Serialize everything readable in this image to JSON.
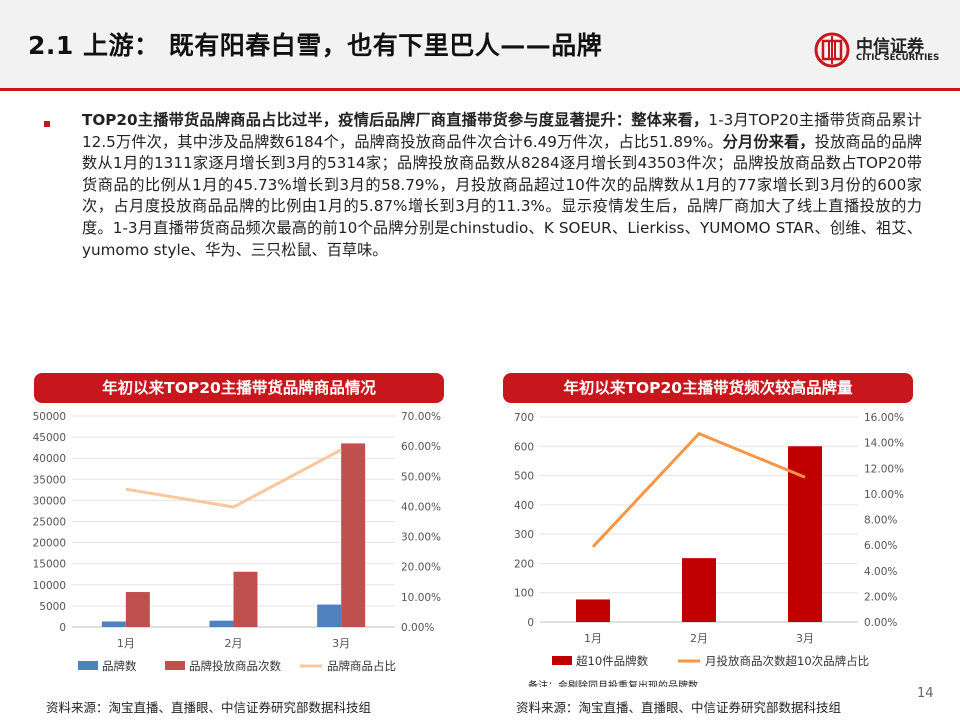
{
  "header": {
    "title": "2.1 上游：  既有阳春白雪，也有下里巴人——品牌",
    "logo_cn": "中信证券",
    "logo_en": "CITIC SECURITIES"
  },
  "paragraph": {
    "lead_bold": "TOP20主播带货品牌商品占比过半，疫情后品牌厂商直播带货参与度显著提升：整体来看，",
    "part1": "1-3月TOP20主播带货商品累计12.5万件次，其中涉及品牌数6184个，品牌商投放商品件次合计6.49万件次，占比51.89%。",
    "mid_bold": "分月份来看，",
    "part2": "投放商品的品牌数从1月的1311家逐月增长到3月的5314家；品牌投放商品数从8284逐月增长到43503件次；品牌投放商品数占TOP20带货商品的比例从1月的45.73%增长到3月的58.79%，月投放商品超过10件次的品牌数从1月的77家增长到3月份的600家次，占月度投放商品品牌的比例由1月的5.87%增长到3月的11.3%。显示疫情发生后，品牌厂商加大了线上直播投放的力度。1-3月直播带货商品频次最高的前10个品牌分别是chinstudio、K SOEUR、Lierkiss、YUMOMO STAR、创维、祖艾、yumomo style、华为、三只松鼠、百草味。"
  },
  "chart_left_title": "年初以来TOP20主播带货品牌商品情况",
  "chart_right_title": "年初以来TOP20主播带货频次较高品牌量",
  "footer": {
    "source_left": "资料来源：淘宝直播、直播眼、中信证券研究部数据科技组",
    "source_right": "资料来源：淘宝直播、直播眼、中信证券研究部数据科技组",
    "note": "备注：会剔除同月投重复出现的品牌数",
    "page_number": "14"
  },
  "colors": {
    "accent": "#c8161d",
    "blue": "#4f81bd",
    "brick": "#c0504d",
    "peach": "#f9c89c",
    "dark_red": "#c00000",
    "orange": "#f79646"
  },
  "chart_data": [
    {
      "type": "bar",
      "categories": [
        "1月",
        "2月",
        "3月"
      ],
      "series": [
        {
          "name": "品牌数",
          "axis": "left",
          "kind": "bar",
          "color": "#4f81bd",
          "values": [
            1311,
            1500,
            5314
          ]
        },
        {
          "name": "品牌投放商品次数",
          "axis": "left",
          "kind": "bar",
          "color": "#c0504d",
          "values": [
            8284,
            13100,
            43503
          ]
        },
        {
          "name": "品牌商品占比",
          "axis": "right",
          "kind": "line",
          "color": "#f9c89c",
          "values": [
            45.73,
            39.8,
            58.79
          ]
        }
      ],
      "left_ticks": [
        "0",
        "5000",
        "10000",
        "15000",
        "20000",
        "25000",
        "30000",
        "35000",
        "40000",
        "45000",
        "50000"
      ],
      "right_ticks": [
        "0.00%",
        "10.00%",
        "20.00%",
        "30.00%",
        "40.00%",
        "50.00%",
        "60.00%",
        "70.00%"
      ],
      "ylim": [
        0,
        50000
      ],
      "ylim_right": [
        0,
        70
      ],
      "legend_position": "bottom"
    },
    {
      "type": "bar",
      "categories": [
        "1月",
        "2月",
        "3月"
      ],
      "series": [
        {
          "name": "超10件品牌数",
          "axis": "left",
          "kind": "bar",
          "color": "#c00000",
          "values": [
            77,
            218,
            600
          ]
        },
        {
          "name": "月投放商品次数超10次品牌占比",
          "axis": "right",
          "kind": "line",
          "color": "#f79646",
          "values": [
            5.87,
            14.7,
            11.3
          ]
        }
      ],
      "left_ticks": [
        "0",
        "100",
        "200",
        "300",
        "400",
        "500",
        "600",
        "700"
      ],
      "right_ticks": [
        "0.00%",
        "2.00%",
        "4.00%",
        "6.00%",
        "8.00%",
        "10.00%",
        "12.00%",
        "14.00%",
        "16.00%"
      ],
      "ylim": [
        0,
        700
      ],
      "ylim_right": [
        0,
        16
      ],
      "legend_position": "bottom"
    }
  ]
}
